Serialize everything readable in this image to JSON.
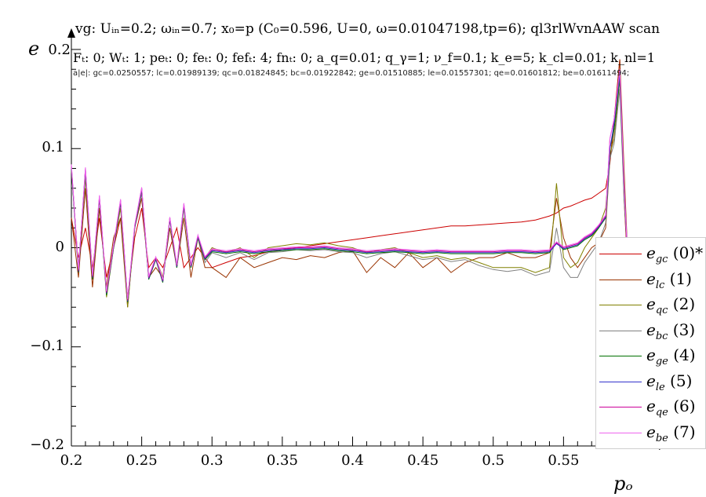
{
  "header": {
    "line1": "vg: Uᵢₙ=0.2; ωᵢₙ=0.7; x₀=p (C₀=0.596, U=0, ω=0.01047198,tp=6); ql3rlWvnAAW scan",
    "line2": "Fₜ: 0; Wₜ: 1; peₜ: 0; feₜ: 0; fefₜ: 4; fnₜ: 0; a_q=0.01; q_γ=1; ν_f=0.1; k_e=5; k_cl=0.01; k_nl=1",
    "line3": "a|e|: gc=0.0250557; lc=0.01989139; qc=0.01824845; bc=0.01922842; ge=0.01510885; le=0.01557301; qe=0.01601812; be=0.01611494;"
  },
  "chart_data": {
    "type": "line",
    "xlabel": "pₒ",
    "ylabel": "e",
    "xlim": [
      0.2,
      0.6
    ],
    "ylim": [
      -0.2,
      0.2
    ],
    "x_ticks": [
      "0.2",
      "0.25",
      "0.3",
      "0.35",
      "0.4",
      "0.45",
      "0.5",
      "0.55"
    ],
    "y_ticks": [
      "0.2",
      "0.1",
      "0",
      "−0.1",
      "−0.2"
    ],
    "grid": false,
    "legend_position": "right",
    "x": [
      0.2,
      0.205,
      0.21,
      0.215,
      0.22,
      0.225,
      0.23,
      0.235,
      0.24,
      0.245,
      0.25,
      0.255,
      0.26,
      0.265,
      0.27,
      0.275,
      0.28,
      0.285,
      0.29,
      0.295,
      0.3,
      0.31,
      0.32,
      0.33,
      0.34,
      0.35,
      0.36,
      0.37,
      0.38,
      0.39,
      0.4,
      0.41,
      0.42,
      0.43,
      0.44,
      0.45,
      0.46,
      0.47,
      0.48,
      0.49,
      0.5,
      0.51,
      0.52,
      0.53,
      0.54,
      0.545,
      0.55,
      0.555,
      0.56,
      0.565,
      0.57,
      0.575,
      0.58,
      0.583,
      0.586,
      0.59,
      0.593,
      0.596
    ],
    "series": [
      {
        "name": "e_gc (0)*",
        "color": "#cc0000",
        "values": [
          0.03,
          -0.01,
          0.02,
          -0.02,
          0.03,
          -0.03,
          0.0,
          0.03,
          -0.05,
          0.01,
          0.04,
          -0.02,
          -0.01,
          -0.02,
          0.0,
          0.02,
          -0.02,
          -0.01,
          0.0,
          -0.01,
          -0.02,
          -0.015,
          -0.01,
          -0.008,
          -0.004,
          -0.002,
          0.0,
          0.002,
          0.004,
          0.006,
          0.008,
          0.01,
          0.012,
          0.014,
          0.016,
          0.018,
          0.02,
          0.022,
          0.022,
          0.023,
          0.024,
          0.025,
          0.026,
          0.028,
          0.032,
          0.035,
          0.04,
          0.042,
          0.045,
          0.048,
          0.05,
          0.055,
          0.06,
          0.085,
          0.13,
          0.19,
          0.05,
          -0.03
        ]
      },
      {
        "name": "e_lc (1)",
        "color": "#993300",
        "values": [
          0.03,
          -0.03,
          0.06,
          -0.04,
          0.04,
          -0.04,
          0.01,
          0.03,
          -0.06,
          0.02,
          0.05,
          -0.03,
          -0.02,
          -0.03,
          0.02,
          -0.02,
          0.03,
          -0.03,
          0.01,
          -0.02,
          -0.02,
          -0.03,
          -0.01,
          -0.02,
          -0.015,
          -0.01,
          -0.012,
          -0.008,
          -0.01,
          -0.005,
          -0.003,
          -0.025,
          -0.01,
          -0.02,
          -0.005,
          -0.02,
          -0.01,
          -0.025,
          -0.015,
          -0.01,
          -0.01,
          -0.005,
          -0.01,
          -0.01,
          -0.005,
          0.05,
          0.01,
          -0.01,
          -0.02,
          -0.01,
          0.0,
          0.005,
          0.02,
          0.09,
          0.12,
          0.19,
          0.08,
          -0.02
        ]
      },
      {
        "name": "e_qc (2)",
        "color": "#808000",
        "values": [
          0.08,
          -0.02,
          0.07,
          -0.03,
          0.05,
          -0.05,
          0.0,
          0.04,
          -0.06,
          0.02,
          0.06,
          -0.03,
          -0.01,
          -0.03,
          0.03,
          -0.02,
          0.04,
          -0.02,
          0.01,
          -0.01,
          0.0,
          -0.005,
          0.0,
          -0.01,
          0.0,
          0.002,
          0.004,
          0.003,
          0.005,
          0.002,
          0.0,
          -0.005,
          -0.002,
          0.0,
          -0.005,
          -0.01,
          -0.008,
          -0.012,
          -0.01,
          -0.015,
          -0.02,
          -0.02,
          -0.02,
          -0.025,
          -0.02,
          0.065,
          -0.01,
          -0.02,
          -0.015,
          0.0,
          0.01,
          0.02,
          0.04,
          0.095,
          0.11,
          0.17,
          0.06,
          -0.02
        ]
      },
      {
        "name": "e_bc (3)",
        "color": "#808080",
        "values": [
          0.08,
          -0.02,
          0.075,
          -0.03,
          0.05,
          -0.045,
          0.0,
          0.045,
          -0.055,
          0.02,
          0.055,
          -0.03,
          -0.01,
          -0.035,
          0.03,
          -0.02,
          0.04,
          -0.02,
          0.01,
          -0.015,
          -0.005,
          -0.01,
          -0.005,
          -0.012,
          -0.005,
          -0.004,
          -0.002,
          -0.003,
          -0.002,
          -0.004,
          -0.005,
          -0.01,
          -0.006,
          -0.004,
          -0.008,
          -0.012,
          -0.01,
          -0.014,
          -0.012,
          -0.018,
          -0.022,
          -0.024,
          -0.022,
          -0.028,
          -0.024,
          0.02,
          -0.02,
          -0.03,
          -0.03,
          -0.015,
          -0.005,
          0.005,
          0.025,
          0.09,
          0.105,
          0.16,
          0.05,
          -0.02
        ]
      },
      {
        "name": "e_ge (4)",
        "color": "#007000",
        "values": [
          0.08,
          -0.025,
          0.078,
          -0.032,
          0.05,
          -0.048,
          0.0,
          0.046,
          -0.055,
          0.02,
          0.058,
          -0.032,
          -0.012,
          -0.035,
          0.028,
          -0.02,
          0.042,
          -0.02,
          0.01,
          -0.012,
          -0.004,
          -0.006,
          -0.004,
          -0.006,
          -0.004,
          -0.003,
          -0.002,
          -0.002,
          -0.001,
          -0.003,
          -0.004,
          -0.006,
          -0.005,
          -0.004,
          -0.005,
          -0.006,
          -0.005,
          -0.006,
          -0.006,
          -0.006,
          -0.006,
          -0.005,
          -0.005,
          -0.006,
          -0.005,
          0.005,
          -0.002,
          0.0,
          0.002,
          0.008,
          0.012,
          0.02,
          0.03,
          0.1,
          0.12,
          0.17,
          0.06,
          -0.02
        ]
      },
      {
        "name": "e_le (5)",
        "color": "#3333cc",
        "values": [
          0.082,
          -0.024,
          0.079,
          -0.03,
          0.051,
          -0.046,
          0.001,
          0.047,
          -0.054,
          0.021,
          0.059,
          -0.031,
          -0.011,
          -0.034,
          0.029,
          -0.019,
          0.043,
          -0.019,
          0.011,
          -0.011,
          -0.003,
          -0.005,
          -0.003,
          -0.005,
          -0.003,
          -0.002,
          -0.001,
          -0.001,
          0.0,
          -0.002,
          -0.003,
          -0.005,
          -0.004,
          -0.003,
          -0.004,
          -0.005,
          -0.004,
          -0.005,
          -0.005,
          -0.005,
          -0.005,
          -0.004,
          -0.004,
          -0.005,
          -0.004,
          0.004,
          -0.001,
          0.001,
          0.003,
          0.009,
          0.013,
          0.021,
          0.031,
          0.1,
          0.125,
          0.175,
          0.062,
          -0.02
        ]
      },
      {
        "name": "e_qe (6)",
        "color": "#cc0099",
        "values": [
          0.083,
          -0.023,
          0.08,
          -0.029,
          0.052,
          -0.045,
          0.002,
          0.048,
          -0.053,
          0.022,
          0.06,
          -0.03,
          -0.01,
          -0.033,
          0.03,
          -0.018,
          0.044,
          -0.018,
          0.012,
          -0.01,
          -0.002,
          -0.004,
          -0.002,
          -0.004,
          -0.002,
          -0.001,
          0.0,
          0.0,
          0.001,
          -0.001,
          -0.002,
          -0.004,
          -0.003,
          -0.002,
          -0.003,
          -0.004,
          -0.003,
          -0.004,
          -0.004,
          -0.004,
          -0.004,
          -0.003,
          -0.003,
          -0.004,
          -0.003,
          0.005,
          0.0,
          0.002,
          0.004,
          0.01,
          0.014,
          0.022,
          0.032,
          0.11,
          0.13,
          0.18,
          0.064,
          -0.02
        ]
      },
      {
        "name": "e_be (7)",
        "color": "#ee66ee",
        "values": [
          0.084,
          -0.022,
          0.081,
          -0.028,
          0.053,
          -0.044,
          0.003,
          0.049,
          -0.052,
          0.023,
          0.061,
          -0.029,
          -0.009,
          -0.032,
          0.031,
          -0.017,
          0.045,
          -0.017,
          0.013,
          -0.009,
          -0.001,
          -0.003,
          -0.001,
          -0.003,
          -0.001,
          0.0,
          0.001,
          0.001,
          0.002,
          0.0,
          -0.001,
          -0.003,
          -0.002,
          -0.001,
          -0.002,
          -0.003,
          -0.002,
          -0.003,
          -0.003,
          -0.003,
          -0.003,
          -0.002,
          -0.002,
          -0.003,
          -0.002,
          0.006,
          0.001,
          0.003,
          0.005,
          0.011,
          0.015,
          0.023,
          0.033,
          0.11,
          0.13,
          0.18,
          0.065,
          -0.02
        ]
      }
    ],
    "legend": [
      {
        "sym": "e",
        "sub": "gc",
        "suffix": " (0)*",
        "color": "#cc0000"
      },
      {
        "sym": "e",
        "sub": "lc",
        "suffix": " (1)",
        "color": "#993300"
      },
      {
        "sym": "e",
        "sub": "qc",
        "suffix": " (2)",
        "color": "#808000"
      },
      {
        "sym": "e",
        "sub": "bc",
        "suffix": " (3)",
        "color": "#808080"
      },
      {
        "sym": "e",
        "sub": "ge",
        "suffix": " (4)",
        "color": "#007000"
      },
      {
        "sym": "e",
        "sub": "le",
        "suffix": " (5)",
        "color": "#3333cc"
      },
      {
        "sym": "e",
        "sub": "qe",
        "suffix": " (6)",
        "color": "#cc0099"
      },
      {
        "sym": "e",
        "sub": "be",
        "suffix": " (7)",
        "color": "#ee66ee"
      }
    ]
  }
}
